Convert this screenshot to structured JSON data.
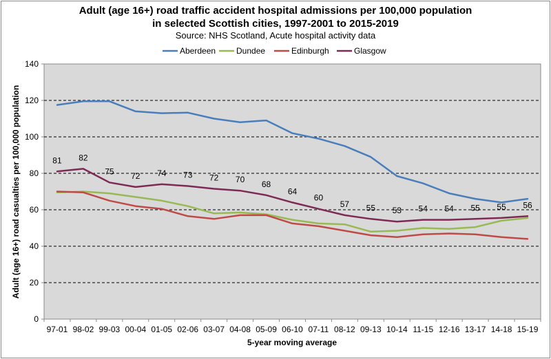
{
  "chart_data": {
    "type": "line",
    "title_line1": "Adult (age 16+) road traffic accident hospital admissions per 100,000 population",
    "title_line2": "in selected Scottish cities, 1997-2001 to 2015-2019",
    "subtitle": "Source: NHS Scotland, Acute hospital activity data",
    "xlabel": "5-year moving average",
    "ylabel": "Adult (age 16+) road casualties per 100,000 population",
    "ylim": [
      0,
      140
    ],
    "yticks": [
      0,
      20,
      40,
      60,
      80,
      100,
      120,
      140
    ],
    "legend_position": "top",
    "categories": [
      "97-01",
      "98-02",
      "99-03",
      "00-04",
      "01-05",
      "02-06",
      "03-07",
      "04-08",
      "05-09",
      "06-10",
      "07-11",
      "08-12",
      "09-13",
      "10-14",
      "11-15",
      "12-16",
      "13-17",
      "14-18",
      "15-19"
    ],
    "series": [
      {
        "name": "Aberdeen",
        "color": "#4a7ebb",
        "values": [
          117.5,
          119.5,
          119.5,
          114,
          113,
          113.3,
          110,
          108,
          109,
          102,
          99,
          95,
          89,
          78.5,
          74.5,
          69,
          66,
          64,
          66
        ]
      },
      {
        "name": "Dundee",
        "color": "#98b954",
        "values": [
          69.5,
          70,
          69,
          67,
          65,
          62,
          58,
          58.5,
          57.5,
          54.5,
          52.5,
          52,
          48,
          48.5,
          50,
          49.5,
          50.5,
          54,
          55.5
        ]
      },
      {
        "name": "Edinburgh",
        "color": "#be4b48",
        "values": [
          70,
          69.5,
          65,
          62,
          60.5,
          56.5,
          55,
          57,
          57,
          52.5,
          51,
          48.5,
          46,
          45,
          46.5,
          47,
          46.5,
          45,
          44
        ]
      },
      {
        "name": "Glasgow",
        "color": "#7d2a55",
        "values": [
          81,
          82.5,
          75,
          72.5,
          74,
          73,
          71.5,
          70.5,
          68,
          64,
          60.5,
          57,
          55,
          53.5,
          54.5,
          54.5,
          55,
          55.5,
          56.5
        ]
      }
    ],
    "glasgow_labels": [
      "81",
      "82",
      "75",
      "72",
      "74",
      "73",
      "72",
      "70",
      "68",
      "64",
      "60",
      "57",
      "55",
      "53",
      "54",
      "54",
      "55",
      "55",
      "56"
    ]
  }
}
